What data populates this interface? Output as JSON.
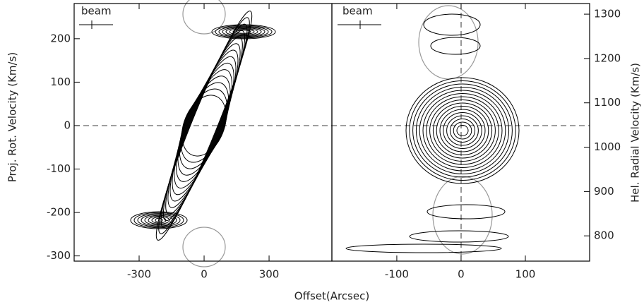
{
  "chart_data": [
    {
      "type": "contour",
      "annotation": "beam",
      "y_label": "Proj. Rot. Velocity (Km/s)",
      "x_label": "Offset(Arcsec)",
      "xlim": [
        -600,
        590
      ],
      "xticks": [
        -300,
        0,
        300
      ],
      "ylim": [
        -312,
        281
      ],
      "yticks": [
        200,
        100,
        0,
        -100,
        -200,
        -300
      ]
    },
    {
      "type": "contour",
      "annotation": "beam",
      "y_label": "Hel. Radial Velocity (Km/s)",
      "xlim": [
        -201,
        200
      ],
      "xticks": [
        -100,
        0,
        100
      ],
      "y2lim": [
        743,
        1324
      ],
      "y2ticks": [
        1300,
        1200,
        1100,
        1000,
        900,
        800
      ]
    }
  ]
}
